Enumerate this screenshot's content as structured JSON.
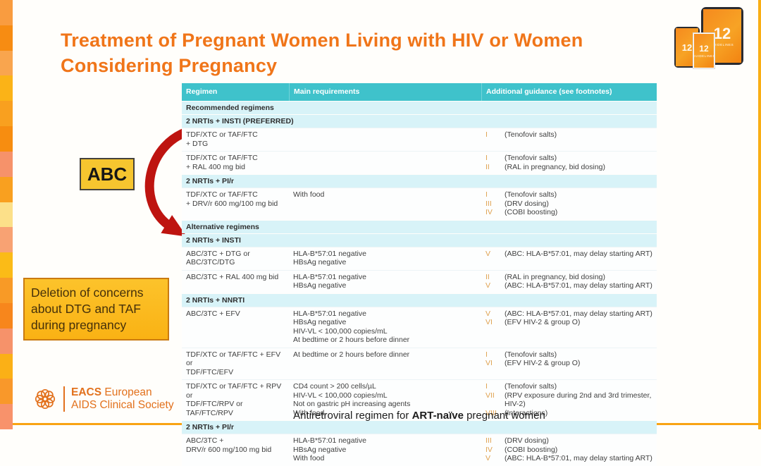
{
  "title": "Treatment of Pregnant Women Living with HIV or Women Considering Pregnancy",
  "annotations": {
    "abc_label": "ABC",
    "deletion_note": "Deletion of concerns about DTG and TAF during pregnancy"
  },
  "devices": {
    "screen_number": "12",
    "screen_label": "GUIDELINES"
  },
  "table": {
    "columns": [
      "Regimen",
      "Main requirements",
      "Additional guidance (see footnotes)"
    ],
    "rows": [
      {
        "band": "Recommended regimens"
      },
      {
        "band": "2 NRTIs + INSTI (PREFERRED)"
      },
      {
        "regimen": [
          "TDF/XTC or TAF/FTC",
          "+ DTG"
        ],
        "requirements": [],
        "guidance": [
          [
            "I",
            "(Tenofovir salts)"
          ]
        ]
      },
      {
        "regimen": [
          "TDF/XTC or TAF/FTC",
          "+ RAL 400 mg bid"
        ],
        "requirements": [],
        "guidance": [
          [
            "I",
            "(Tenofovir salts)"
          ],
          [
            "II",
            "(RAL in pregnancy, bid dosing)"
          ]
        ]
      },
      {
        "band": "2 NRTIs + PI/r"
      },
      {
        "regimen": [
          "TDF/XTC or TAF/FTC",
          "+ DRV/r 600 mg/100 mg bid"
        ],
        "requirements": [
          "With food"
        ],
        "guidance": [
          [
            "I",
            "(Tenofovir salts)"
          ],
          [
            "III",
            "(DRV dosing)"
          ],
          [
            "IV",
            "(COBI boosting)"
          ]
        ]
      },
      {
        "band": "Alternative regimens"
      },
      {
        "band": "2 NRTIs + INSTI"
      },
      {
        "regimen": [
          "ABC/3TC + DTG or ABC/3TC/DTG"
        ],
        "requirements": [
          "HLA-B*57:01 negative",
          "HBsAg negative"
        ],
        "guidance": [
          [
            "V",
            "(ABC: HLA-B*57:01, may delay starting ART)"
          ]
        ]
      },
      {
        "regimen": [
          "ABC/3TC + RAL 400 mg bid"
        ],
        "requirements": [
          "HLA-B*57:01 negative",
          "HBsAg negative"
        ],
        "guidance": [
          [
            "II",
            "(RAL in pregnancy, bid dosing)"
          ],
          [
            "V",
            "(ABC: HLA-B*57:01, may delay starting ART)"
          ]
        ]
      },
      {
        "band": "2 NRTIs + NNRTI"
      },
      {
        "regimen": [
          "ABC/3TC + EFV"
        ],
        "requirements": [
          "HLA-B*57:01 negative",
          "HBsAg negative",
          "HIV-VL < 100,000 copies/mL",
          "At bedtime or 2 hours before dinner"
        ],
        "guidance": [
          [
            "V",
            "(ABC: HLA-B*57:01, may delay starting ART)"
          ],
          [
            "VI",
            "(EFV HIV-2 & group O)"
          ]
        ]
      },
      {
        "regimen": [
          "TDF/XTC or TAF/FTC + EFV or",
          "TDF/FTC/EFV"
        ],
        "requirements": [
          "At bedtime or 2 hours before dinner"
        ],
        "guidance": [
          [
            "I",
            "(Tenofovir salts)"
          ],
          [
            "VI",
            "(EFV HIV-2 & group O)"
          ]
        ]
      },
      {
        "regimen": [
          "TDF/XTC or TAF/FTC + RPV or",
          "TDF/FTC/RPV or TAF/FTC/RPV"
        ],
        "requirements": [
          "CD4 count > 200 cells/µL",
          "HIV-VL < 100,000 copies/mL",
          "Not on gastric pH increasing agents",
          "With food"
        ],
        "guidance": [
          [
            "I",
            "(Tenofovir salts)"
          ],
          [
            "VII",
            "(RPV exposure during 2nd and 3rd trimester, HIV-2)"
          ],
          [
            "VIII",
            "(Interactions)"
          ]
        ]
      },
      {
        "band": "2 NRTIs + PI/r"
      },
      {
        "regimen": [
          "ABC/3TC +",
          "DRV/r 600 mg/100 mg bid"
        ],
        "requirements": [
          "HLA-B*57:01 negative",
          "HBsAg negative",
          "With food"
        ],
        "guidance": [
          [
            "III",
            "(DRV dosing)"
          ],
          [
            "IV",
            "(COBI boosting)"
          ],
          [
            "V",
            "(ABC: HLA-B*57:01, may delay starting ART)"
          ]
        ]
      }
    ]
  },
  "footer": {
    "caption_prefix": "Antiretroviral regimen for ",
    "caption_bold": "ART-naïve",
    "caption_suffix": " pregnant women",
    "logo_bold": "EACS",
    "logo_line1_rest": " European",
    "logo_line2": "AIDS Clinical Society"
  },
  "colors": {
    "accent_orange": "#F07519",
    "table_header_teal": "#3FC2CB",
    "section_band_cyan": "#D8F3F8",
    "footnote_numeral_amber": "#DFA14F",
    "arrow_red": "#BE1410",
    "abc_box_yellow": "#F6C52F",
    "note_box_orange": "#FBBC1E",
    "logo_orange": "#E2711D"
  },
  "left_strip_colors": [
    "#F99C40",
    "#F78C12",
    "#F9A54E",
    "#FBB317",
    "#F9A01F",
    "#F78D10",
    "#F6926A",
    "#F9A01F",
    "#FCE089",
    "#F8A273",
    "#FBBB17",
    "#F89A26",
    "#F7861C",
    "#F6926A",
    "#FBB016",
    "#F9982A",
    "#F8926B"
  ]
}
